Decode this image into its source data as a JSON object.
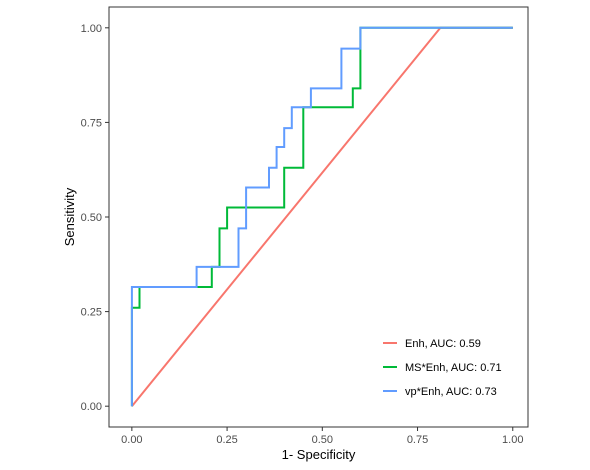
{
  "chart_data": {
    "type": "line",
    "title": "",
    "xlabel": "1- Specificity",
    "ylabel": "Sensitivity",
    "xlim": [
      -0.06,
      1.04
    ],
    "ylim": [
      -0.055,
      1.055
    ],
    "x_ticks": [
      0,
      0.25,
      0.5,
      0.75,
      1
    ],
    "x_tick_labels": [
      "0.00",
      "0.25",
      "0.50",
      "0.75",
      "1.00"
    ],
    "y_ticks": [
      0,
      0.25,
      0.5,
      0.75,
      1
    ],
    "y_tick_labels": [
      "0.00",
      "0.25",
      "0.50",
      "0.75",
      "1.00"
    ],
    "grid": false,
    "legend_position": "bottom-right",
    "series": [
      {
        "name": "Enh, AUC: 0.59",
        "color": "#f8766d",
        "points": [
          [
            0,
            0
          ],
          [
            0.81,
            1
          ],
          [
            1,
            1
          ]
        ]
      },
      {
        "name": "MS*Enh, AUC: 0.71",
        "color": "#00ba38",
        "points": [
          [
            0,
            0
          ],
          [
            0,
            0.26
          ],
          [
            0.02,
            0.26
          ],
          [
            0.02,
            0.315
          ],
          [
            0.21,
            0.315
          ],
          [
            0.21,
            0.368
          ],
          [
            0.23,
            0.368
          ],
          [
            0.23,
            0.47
          ],
          [
            0.25,
            0.47
          ],
          [
            0.25,
            0.525
          ],
          [
            0.4,
            0.525
          ],
          [
            0.4,
            0.63
          ],
          [
            0.45,
            0.63
          ],
          [
            0.45,
            0.79
          ],
          [
            0.58,
            0.79
          ],
          [
            0.58,
            0.84
          ],
          [
            0.6,
            0.84
          ],
          [
            0.6,
            1
          ],
          [
            1,
            1
          ]
        ]
      },
      {
        "name": "vp*Enh, AUC: 0.73",
        "color": "#619cff",
        "points": [
          [
            0,
            0
          ],
          [
            0,
            0.315
          ],
          [
            0.17,
            0.315
          ],
          [
            0.17,
            0.368
          ],
          [
            0.28,
            0.368
          ],
          [
            0.28,
            0.47
          ],
          [
            0.3,
            0.47
          ],
          [
            0.3,
            0.578
          ],
          [
            0.36,
            0.578
          ],
          [
            0.36,
            0.63
          ],
          [
            0.38,
            0.63
          ],
          [
            0.38,
            0.685
          ],
          [
            0.4,
            0.685
          ],
          [
            0.4,
            0.735
          ],
          [
            0.42,
            0.735
          ],
          [
            0.42,
            0.79
          ],
          [
            0.47,
            0.79
          ],
          [
            0.47,
            0.84
          ],
          [
            0.55,
            0.84
          ],
          [
            0.55,
            0.945
          ],
          [
            0.6,
            0.945
          ],
          [
            0.6,
            1
          ],
          [
            1,
            1
          ]
        ]
      }
    ]
  }
}
